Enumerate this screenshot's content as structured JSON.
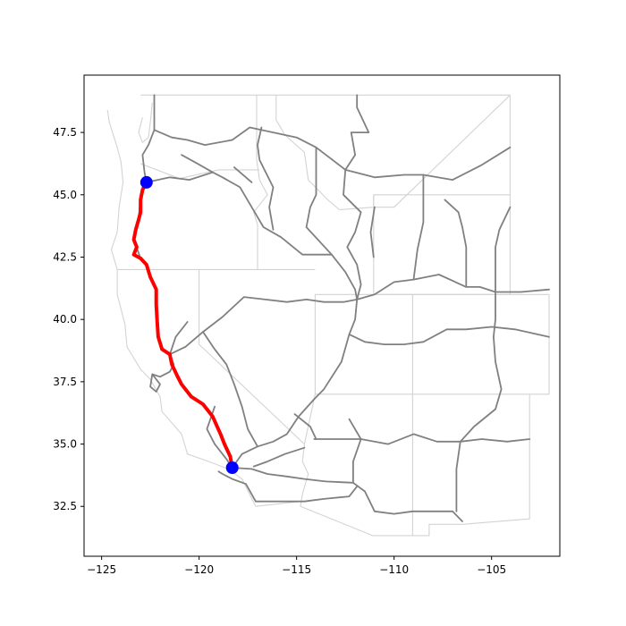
{
  "chart_data": {
    "type": "map",
    "xlim": [
      -125.9,
      -101.5
    ],
    "ylim": [
      30.5,
      49.8
    ],
    "x_ticks": [
      -125,
      -120,
      -115,
      -110,
      -105
    ],
    "y_ticks": [
      32.5,
      35.0,
      37.5,
      40.0,
      42.5,
      45.0,
      47.5
    ],
    "x_tick_labels": [
      "−125",
      "−120",
      "−115",
      "−110",
      "−105"
    ],
    "y_tick_labels": [
      "32.5",
      "35.0",
      "37.5",
      "40.0",
      "42.5",
      "45.0",
      "47.5"
    ],
    "grid": false,
    "colors": {
      "route": "#ff0000",
      "endpoints": "#0000ff",
      "highways": "#808080",
      "state_borders": "#d3d3d3"
    },
    "endpoints": [
      {
        "lon": -122.7,
        "lat": 45.5
      },
      {
        "lon": -118.3,
        "lat": 34.05
      }
    ],
    "route": [
      [
        -122.7,
        45.5
      ],
      [
        -122.9,
        45.2
      ],
      [
        -123.0,
        44.8
      ],
      [
        -123.0,
        44.3
      ],
      [
        -123.1,
        44.0
      ],
      [
        -123.25,
        43.6
      ],
      [
        -123.35,
        43.2
      ],
      [
        -123.2,
        42.9
      ],
      [
        -123.35,
        42.6
      ],
      [
        -123.0,
        42.45
      ],
      [
        -122.7,
        42.2
      ],
      [
        -122.5,
        41.7
      ],
      [
        -122.2,
        41.2
      ],
      [
        -122.2,
        40.6
      ],
      [
        -122.15,
        39.9
      ],
      [
        -122.1,
        39.3
      ],
      [
        -121.9,
        38.8
      ],
      [
        -121.5,
        38.6
      ],
      [
        -121.4,
        38.2
      ],
      [
        -121.1,
        37.7
      ],
      [
        -120.9,
        37.4
      ],
      [
        -120.4,
        36.9
      ],
      [
        -119.8,
        36.6
      ],
      [
        -119.3,
        36.1
      ],
      [
        -118.9,
        35.4
      ],
      [
        -118.7,
        35.0
      ],
      [
        -118.4,
        34.5
      ],
      [
        -118.3,
        34.05
      ]
    ],
    "state_borders": [
      [
        [
          -124.2,
          42.0
        ],
        [
          -117.0,
          42.0
        ]
      ],
      [
        [
          -120.0,
          42.0
        ],
        [
          -120.0,
          39.0
        ],
        [
          -114.6,
          35.0
        ]
      ],
      [
        [
          -123.0,
          46.25
        ],
        [
          -121.0,
          45.65
        ],
        [
          -119.0,
          46.0
        ],
        [
          -116.9,
          46.0
        ]
      ],
      [
        [
          -117.05,
          49.0
        ],
        [
          -117.05,
          46.4
        ],
        [
          -116.9,
          45.6
        ],
        [
          -116.5,
          45.0
        ],
        [
          -117.2,
          44.3
        ],
        [
          -117.0,
          43.8
        ],
        [
          -117.0,
          42.0
        ]
      ],
      [
        [
          -116.05,
          49.0
        ],
        [
          -116.05,
          48.0
        ],
        [
          -115.6,
          47.4
        ],
        [
          -114.6,
          46.7
        ],
        [
          -114.4,
          45.6
        ],
        [
          -113.4,
          44.8
        ],
        [
          -112.8,
          44.4
        ],
        [
          -111.05,
          44.5
        ]
      ],
      [
        [
          -111.05,
          45.0
        ],
        [
          -111.05,
          41.0
        ],
        [
          -114.05,
          41.0
        ],
        [
          -114.05,
          37.0
        ],
        [
          -114.6,
          35.0
        ]
      ],
      [
        [
          -117.0,
          42.0
        ],
        [
          -114.05,
          42.0
        ]
      ],
      [
        [
          -111.05,
          44.5
        ],
        [
          -111.05,
          45.0
        ],
        [
          -104.05,
          45.0
        ],
        [
          -104.05,
          41.0
        ],
        [
          -111.05,
          41.0
        ]
      ],
      [
        [
          -111.05,
          41.0
        ],
        [
          -109.05,
          41.0
        ],
        [
          -109.05,
          37.0
        ],
        [
          -114.05,
          37.0
        ]
      ],
      [
        [
          -109.05,
          41.0
        ],
        [
          -102.05,
          41.0
        ],
        [
          -102.05,
          37.0
        ],
        [
          -109.05,
          37.0
        ]
      ],
      [
        [
          -109.05,
          37.0
        ],
        [
          -109.05,
          31.33
        ],
        [
          -108.2,
          31.33
        ],
        [
          -108.2,
          31.78
        ],
        [
          -106.5,
          31.78
        ],
        [
          -103.05,
          32.0
        ],
        [
          -103.05,
          37.0
        ]
      ],
      [
        [
          -114.6,
          35.0
        ],
        [
          -114.7,
          34.3
        ],
        [
          -114.4,
          33.8
        ],
        [
          -114.7,
          33.0
        ],
        [
          -114.8,
          32.5
        ],
        [
          -111.1,
          31.33
        ],
        [
          -109.05,
          31.33
        ]
      ],
      [
        [
          -117.1,
          32.5
        ],
        [
          -114.8,
          32.7
        ]
      ],
      [
        [
          -111.05,
          44.5
        ],
        [
          -110.0,
          44.5
        ],
        [
          -104.05,
          49.0
        ]
      ],
      [
        [
          -104.05,
          49.0
        ],
        [
          -104.05,
          45.0
        ]
      ],
      [
        [
          -116.05,
          49.0
        ],
        [
          -104.05,
          49.0
        ]
      ],
      [
        [
          -123.0,
          49.0
        ],
        [
          -116.05,
          49.0
        ]
      ],
      [
        [
          -124.7,
          48.4
        ],
        [
          -124.6,
          47.9
        ],
        [
          -124.2,
          46.9
        ],
        [
          -124.0,
          46.3
        ],
        [
          -123.9,
          45.5
        ],
        [
          -124.1,
          44.5
        ],
        [
          -124.2,
          43.5
        ],
        [
          -124.5,
          42.8
        ],
        [
          -124.2,
          42.0
        ],
        [
          -124.2,
          41.0
        ],
        [
          -123.8,
          39.8
        ],
        [
          -123.7,
          38.9
        ],
        [
          -123.0,
          38.0
        ],
        [
          -122.5,
          37.6
        ],
        [
          -122.0,
          36.9
        ],
        [
          -121.9,
          36.3
        ],
        [
          -120.9,
          35.4
        ],
        [
          -120.6,
          34.6
        ],
        [
          -119.5,
          34.3
        ],
        [
          -118.5,
          34.0
        ],
        [
          -117.8,
          33.6
        ],
        [
          -117.1,
          32.5
        ]
      ],
      [
        [
          -122.4,
          48.7
        ],
        [
          -122.5,
          47.9
        ],
        [
          -122.6,
          47.3
        ],
        [
          -122.9,
          47.1
        ],
        [
          -123.1,
          47.5
        ],
        [
          -122.9,
          48.1
        ]
      ]
    ],
    "highways": [
      [
        [
          -122.7,
          45.5
        ],
        [
          -121.5,
          45.7
        ],
        [
          -120.5,
          45.6
        ],
        [
          -119.3,
          45.9
        ],
        [
          -118.8,
          45.7
        ],
        [
          -117.9,
          45.3
        ],
        [
          -117.3,
          44.5
        ],
        [
          -116.7,
          43.7
        ],
        [
          -115.8,
          43.3
        ],
        [
          -114.7,
          42.6
        ],
        [
          -113.2,
          42.6
        ],
        [
          -112.5,
          41.9
        ],
        [
          -112.0,
          41.2
        ],
        [
          -111.9,
          40.8
        ]
      ],
      [
        [
          -122.3,
          47.6
        ],
        [
          -121.4,
          47.3
        ],
        [
          -120.6,
          47.2
        ],
        [
          -119.7,
          47.0
        ],
        [
          -118.3,
          47.2
        ],
        [
          -117.4,
          47.7
        ],
        [
          -116.2,
          47.5
        ],
        [
          -115.0,
          47.3
        ],
        [
          -114.0,
          46.9
        ],
        [
          -112.5,
          46.0
        ],
        [
          -111.0,
          45.7
        ],
        [
          -109.5,
          45.8
        ],
        [
          -108.5,
          45.8
        ],
        [
          -107.0,
          45.6
        ],
        [
          -105.5,
          46.2
        ],
        [
          -104.05,
          46.9
        ]
      ],
      [
        [
          -122.3,
          49.0
        ],
        [
          -122.3,
          47.6
        ],
        [
          -122.6,
          47.0
        ],
        [
          -122.9,
          46.6
        ],
        [
          -122.8,
          45.9
        ],
        [
          -122.7,
          45.5
        ]
      ],
      [
        [
          -122.7,
          45.5
        ],
        [
          -123.0,
          45.0
        ],
        [
          -123.1,
          44.0
        ],
        [
          -123.35,
          43.2
        ],
        [
          -123.0,
          42.45
        ]
      ],
      [
        [
          -120.9,
          46.6
        ],
        [
          -120.2,
          46.3
        ],
        [
          -119.3,
          45.9
        ]
      ],
      [
        [
          -118.2,
          46.1
        ],
        [
          -117.3,
          45.5
        ]
      ],
      [
        [
          -119.8,
          39.5
        ],
        [
          -118.8,
          40.1
        ],
        [
          -117.7,
          40.9
        ],
        [
          -116.6,
          40.8
        ],
        [
          -115.5,
          40.7
        ],
        [
          -114.5,
          40.8
        ],
        [
          -113.6,
          40.7
        ],
        [
          -112.6,
          40.7
        ],
        [
          -111.9,
          40.8
        ]
      ],
      [
        [
          -121.5,
          38.6
        ],
        [
          -120.7,
          38.9
        ],
        [
          -119.8,
          39.5
        ]
      ],
      [
        [
          -122.4,
          37.8
        ],
        [
          -122.0,
          37.7
        ],
        [
          -121.5,
          37.9
        ],
        [
          -121.3,
          38.2
        ],
        [
          -121.5,
          38.6
        ]
      ],
      [
        [
          -122.4,
          37.8
        ],
        [
          -122.5,
          37.3
        ],
        [
          -122.2,
          37.1
        ],
        [
          -122.0,
          37.4
        ],
        [
          -122.4,
          37.8
        ]
      ],
      [
        [
          -118.3,
          34.05
        ],
        [
          -117.8,
          34.6
        ],
        [
          -117.0,
          34.9
        ],
        [
          -116.2,
          35.1
        ],
        [
          -115.5,
          35.4
        ],
        [
          -114.9,
          36.1
        ],
        [
          -114.1,
          36.8
        ],
        [
          -113.6,
          37.2
        ],
        [
          -112.7,
          38.3
        ],
        [
          -112.3,
          39.4
        ],
        [
          -112.0,
          40.0
        ],
        [
          -111.9,
          40.8
        ]
      ],
      [
        [
          -111.9,
          40.8
        ],
        [
          -111.7,
          41.4
        ],
        [
          -111.9,
          42.2
        ],
        [
          -112.4,
          42.9
        ],
        [
          -112.0,
          43.5
        ],
        [
          -111.7,
          44.3
        ],
        [
          -112.6,
          45.0
        ],
        [
          -112.5,
          46.0
        ],
        [
          -112.0,
          46.6
        ],
        [
          -112.2,
          47.5
        ],
        [
          -111.3,
          47.5
        ],
        [
          -111.9,
          48.5
        ],
        [
          -111.9,
          49.0
        ]
      ],
      [
        [
          -111.9,
          40.8
        ],
        [
          -111.0,
          41.0
        ],
        [
          -110.0,
          41.5
        ],
        [
          -109.0,
          41.6
        ],
        [
          -107.7,
          41.8
        ],
        [
          -106.3,
          41.3
        ],
        [
          -105.6,
          41.3
        ],
        [
          -104.8,
          41.1
        ],
        [
          -103.5,
          41.1
        ],
        [
          -102.05,
          41.2
        ]
      ],
      [
        [
          -112.3,
          39.4
        ],
        [
          -111.5,
          39.1
        ],
        [
          -110.5,
          39.0
        ],
        [
          -109.5,
          39.0
        ],
        [
          -108.5,
          39.1
        ],
        [
          -107.3,
          39.6
        ],
        [
          -106.3,
          39.6
        ],
        [
          -105.0,
          39.7
        ],
        [
          -103.8,
          39.6
        ],
        [
          -102.05,
          39.3
        ]
      ],
      [
        [
          -118.3,
          34.05
        ],
        [
          -117.3,
          34.0
        ],
        [
          -116.5,
          33.8
        ],
        [
          -115.5,
          33.7
        ],
        [
          -114.6,
          33.6
        ],
        [
          -113.5,
          33.5
        ],
        [
          -112.1,
          33.45
        ],
        [
          -111.5,
          33.1
        ],
        [
          -111.0,
          32.3
        ],
        [
          -110.0,
          32.2
        ],
        [
          -109.05,
          32.3
        ],
        [
          -108.0,
          32.3
        ],
        [
          -107.0,
          32.3
        ],
        [
          -106.5,
          31.9
        ]
      ],
      [
        [
          -117.1,
          32.7
        ],
        [
          -116.0,
          32.7
        ],
        [
          -114.6,
          32.7
        ],
        [
          -113.6,
          32.8
        ],
        [
          -112.3,
          32.9
        ],
        [
          -111.9,
          33.3
        ]
      ],
      [
        [
          -112.1,
          33.45
        ],
        [
          -112.1,
          34.3
        ],
        [
          -111.7,
          35.2
        ],
        [
          -112.3,
          36.0
        ]
      ],
      [
        [
          -114.1,
          35.2
        ],
        [
          -113.0,
          35.2
        ],
        [
          -111.7,
          35.2
        ],
        [
          -110.3,
          35.0
        ],
        [
          -109.0,
          35.4
        ],
        [
          -107.8,
          35.1
        ],
        [
          -106.6,
          35.1
        ],
        [
          -105.5,
          35.2
        ],
        [
          -104.2,
          35.1
        ],
        [
          -103.05,
          35.2
        ]
      ],
      [
        [
          -106.6,
          35.1
        ],
        [
          -106.8,
          34.0
        ],
        [
          -106.8,
          33.0
        ],
        [
          -106.8,
          32.3
        ]
      ],
      [
        [
          -104.8,
          41.1
        ],
        [
          -104.8,
          40.0
        ],
        [
          -104.9,
          39.3
        ],
        [
          -104.8,
          38.3
        ],
        [
          -104.5,
          37.2
        ],
        [
          -104.8,
          36.4
        ],
        [
          -105.9,
          35.7
        ],
        [
          -106.6,
          35.1
        ]
      ],
      [
        [
          -104.05,
          44.5
        ],
        [
          -104.6,
          43.6
        ],
        [
          -104.8,
          42.9
        ],
        [
          -104.8,
          42.0
        ],
        [
          -104.8,
          41.1
        ]
      ],
      [
        [
          -107.4,
          44.8
        ],
        [
          -106.7,
          44.3
        ],
        [
          -106.5,
          43.7
        ],
        [
          -106.3,
          42.9
        ],
        [
          -106.3,
          41.3
        ]
      ],
      [
        [
          -109.0,
          41.6
        ],
        [
          -108.8,
          42.8
        ],
        [
          -108.5,
          43.9
        ],
        [
          -108.5,
          45.8
        ]
      ],
      [
        [
          -113.2,
          42.6
        ],
        [
          -114.5,
          43.7
        ],
        [
          -114.3,
          44.5
        ],
        [
          -114.0,
          45.0
        ],
        [
          -114.0,
          46.9
        ]
      ],
      [
        [
          -116.2,
          43.6
        ],
        [
          -116.4,
          44.5
        ],
        [
          -116.2,
          45.3
        ],
        [
          -116.9,
          46.4
        ],
        [
          -117.0,
          47.0
        ],
        [
          -116.8,
          47.7
        ]
      ],
      [
        [
          -120.6,
          39.9
        ],
        [
          -121.2,
          39.3
        ],
        [
          -121.5,
          38.6
        ]
      ],
      [
        [
          -119.2,
          36.5
        ],
        [
          -119.6,
          35.6
        ],
        [
          -119.2,
          35.0
        ],
        [
          -118.6,
          34.4
        ],
        [
          -118.3,
          34.05
        ]
      ],
      [
        [
          -117.2,
          34.1
        ],
        [
          -116.5,
          34.3
        ],
        [
          -115.6,
          34.6
        ],
        [
          -114.6,
          34.85
        ]
      ],
      [
        [
          -117.0,
          34.9
        ],
        [
          -117.5,
          35.6
        ],
        [
          -117.8,
          36.5
        ],
        [
          -118.2,
          37.4
        ],
        [
          -118.6,
          38.2
        ],
        [
          -119.2,
          38.8
        ],
        [
          -119.8,
          39.5
        ]
      ],
      [
        [
          -115.1,
          36.2
        ],
        [
          -114.3,
          35.7
        ],
        [
          -114.0,
          35.2
        ]
      ],
      [
        [
          -111.05,
          42.5
        ],
        [
          -111.2,
          43.5
        ],
        [
          -111.0,
          44.5
        ]
      ],
      [
        [
          -119.0,
          33.9
        ],
        [
          -118.8,
          33.8
        ],
        [
          -118.3,
          33.6
        ],
        [
          -117.6,
          33.4
        ],
        [
          -117.1,
          32.7
        ]
      ]
    ]
  }
}
